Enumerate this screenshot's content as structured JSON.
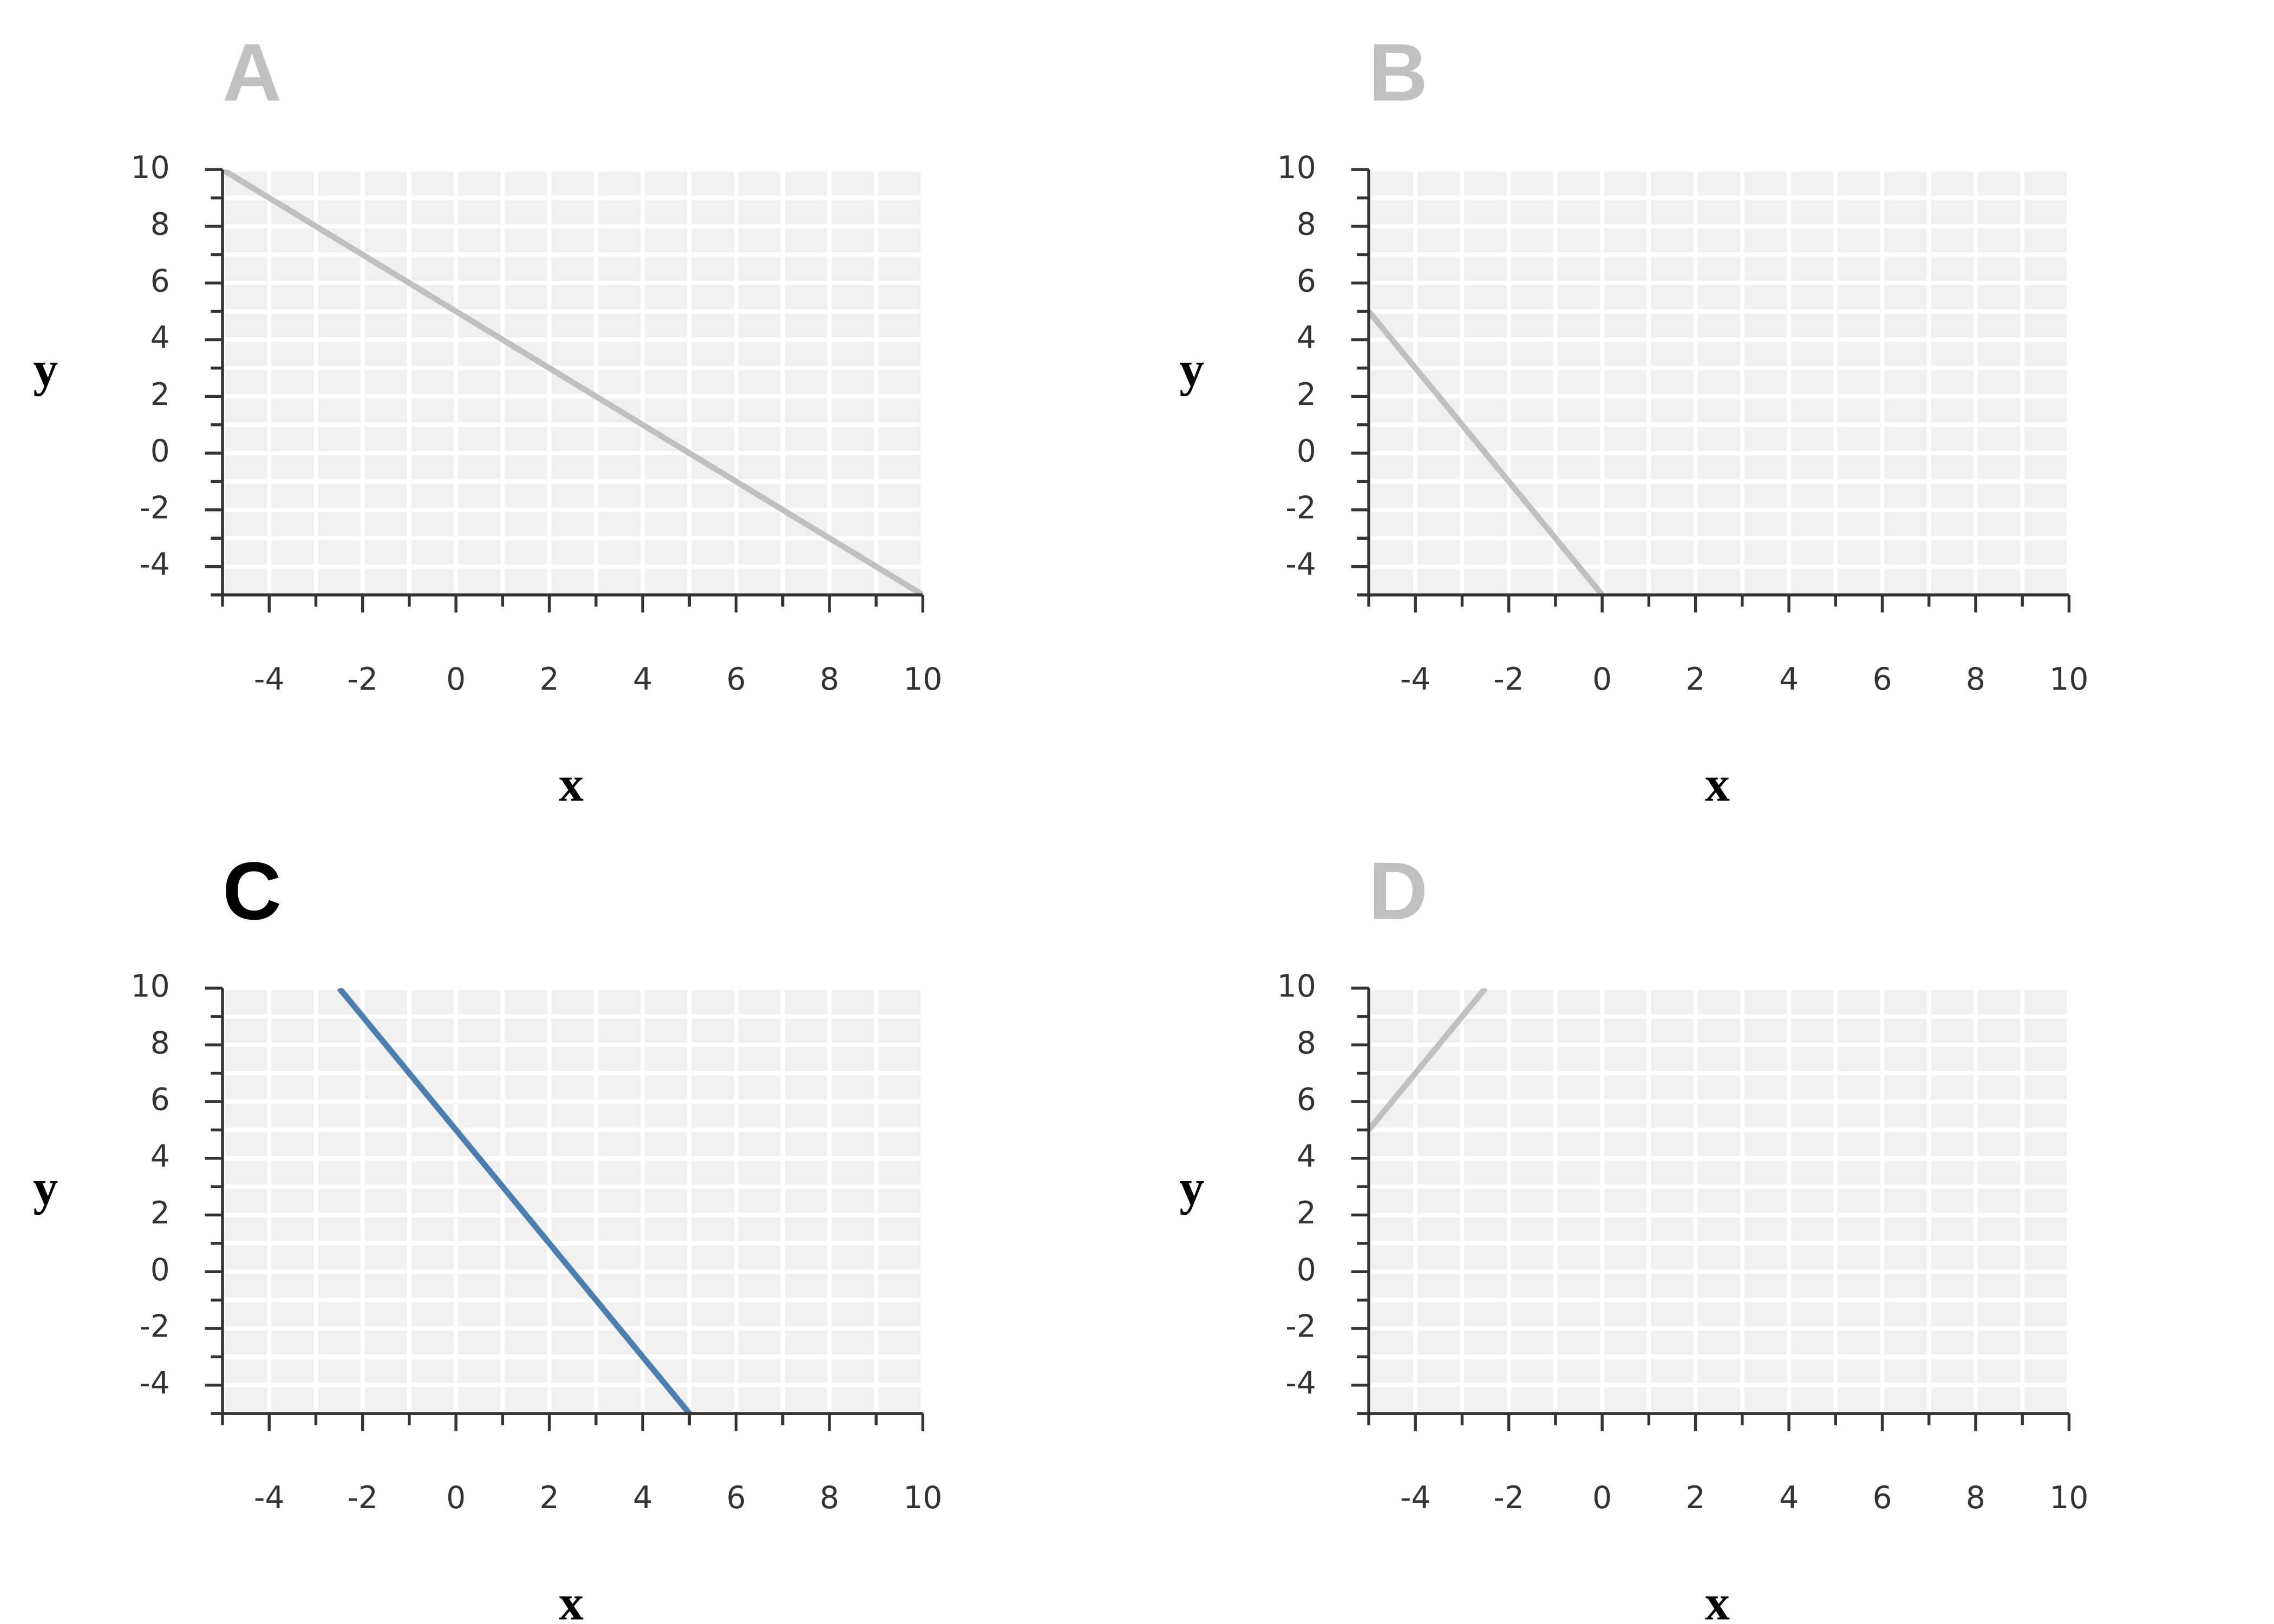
{
  "chart_data": [
    {
      "type": "line",
      "title": "A",
      "title_color": "#c0c0c0",
      "xlabel": "x",
      "ylabel": "y",
      "x": [
        -5,
        10
      ],
      "values": [
        10,
        -5
      ],
      "color": "#c0c0c0",
      "xlim": [
        -5,
        10
      ],
      "ylim": [
        -5,
        10
      ],
      "xticks": [
        -4,
        -2,
        0,
        2,
        4,
        6,
        8,
        10
      ],
      "yticks": [
        -4,
        -2,
        0,
        2,
        4,
        6,
        8,
        10
      ],
      "xminor_ticks": [
        -5,
        -3,
        -1,
        1,
        3,
        5,
        7,
        9
      ],
      "yminor_ticks": [
        -5,
        -3,
        -1,
        1,
        3,
        5,
        7,
        9
      ],
      "grid": true,
      "background": "#f0f0f0"
    },
    {
      "type": "line",
      "title": "B",
      "title_color": "#c0c0c0",
      "xlabel": "x",
      "ylabel": "y",
      "x": [
        -5,
        0
      ],
      "values": [
        5,
        -5
      ],
      "color": "#c0c0c0",
      "xlim": [
        -5,
        10
      ],
      "ylim": [
        -5,
        10
      ],
      "xticks": [
        -4,
        -2,
        0,
        2,
        4,
        6,
        8,
        10
      ],
      "yticks": [
        -4,
        -2,
        0,
        2,
        4,
        6,
        8,
        10
      ],
      "xminor_ticks": [
        -5,
        -3,
        -1,
        1,
        3,
        5,
        7,
        9
      ],
      "yminor_ticks": [
        -5,
        -3,
        -1,
        1,
        3,
        5,
        7,
        9
      ],
      "grid": true,
      "background": "#f0f0f0"
    },
    {
      "type": "line",
      "title": "C",
      "title_color": "#000000",
      "xlabel": "x",
      "ylabel": "y",
      "x": [
        -2.5,
        5
      ],
      "values": [
        10,
        -5
      ],
      "color": "#4a7fb0",
      "xlim": [
        -5,
        10
      ],
      "ylim": [
        -5,
        10
      ],
      "xticks": [
        -4,
        -2,
        0,
        2,
        4,
        6,
        8,
        10
      ],
      "yticks": [
        -4,
        -2,
        0,
        2,
        4,
        6,
        8,
        10
      ],
      "xminor_ticks": [
        -5,
        -3,
        -1,
        1,
        3,
        5,
        7,
        9
      ],
      "yminor_ticks": [
        -5,
        -3,
        -1,
        1,
        3,
        5,
        7,
        9
      ],
      "grid": true,
      "background": "#f0f0f0"
    },
    {
      "type": "line",
      "title": "D",
      "title_color": "#c0c0c0",
      "xlabel": "x",
      "ylabel": "y",
      "x": [
        -5,
        -2.5
      ],
      "values": [
        5,
        10
      ],
      "color": "#c0c0c0",
      "xlim": [
        -5,
        10
      ],
      "ylim": [
        -5,
        10
      ],
      "xticks": [
        -4,
        -2,
        0,
        2,
        4,
        6,
        8,
        10
      ],
      "yticks": [
        -4,
        -2,
        0,
        2,
        4,
        6,
        8,
        10
      ],
      "xminor_ticks": [
        -5,
        -3,
        -1,
        1,
        3,
        5,
        7,
        9
      ],
      "yminor_ticks": [
        -5,
        -3,
        -1,
        1,
        3,
        5,
        7,
        9
      ],
      "grid": true,
      "background": "#f0f0f0"
    }
  ]
}
